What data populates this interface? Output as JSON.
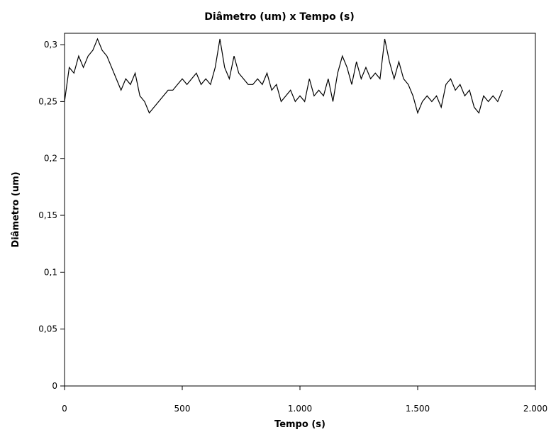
{
  "chart_data": {
    "type": "line",
    "title": "Diâmetro (um) x Tempo (s)",
    "x_label": "Tempo (s)",
    "y_label": "Diâmetro (um)",
    "x": [
      0,
      20,
      40,
      60,
      80,
      100,
      120,
      140,
      160,
      180,
      200,
      220,
      240,
      260,
      280,
      300,
      320,
      340,
      360,
      380,
      400,
      420,
      440,
      460,
      480,
      500,
      520,
      540,
      560,
      580,
      600,
      620,
      640,
      660,
      680,
      700,
      720,
      740,
      760,
      780,
      800,
      820,
      840,
      860,
      880,
      900,
      920,
      940,
      960,
      980,
      1000,
      1020,
      1040,
      1060,
      1080,
      1100,
      1120,
      1140,
      1160,
      1180,
      1200,
      1220,
      1240,
      1260,
      1280,
      1300,
      1320,
      1340,
      1360,
      1380,
      1400,
      1420,
      1440,
      1460,
      1480,
      1500,
      1520,
      1540,
      1560,
      1580,
      1600,
      1620,
      1640,
      1660,
      1680,
      1700,
      1720,
      1740,
      1760,
      1780,
      1800,
      1820,
      1840,
      1860
    ],
    "series": [
      {
        "color": "#000000",
        "values": [
          0.25,
          0.28,
          0.275,
          0.29,
          0.28,
          0.29,
          0.295,
          0.305,
          0.295,
          0.29,
          0.28,
          0.27,
          0.26,
          0.27,
          0.265,
          0.275,
          0.255,
          0.25,
          0.24,
          0.245,
          0.25,
          0.255,
          0.26,
          0.26,
          0.265,
          0.27,
          0.265,
          0.27,
          0.275,
          0.265,
          0.27,
          0.265,
          0.28,
          0.305,
          0.28,
          0.27,
          0.29,
          0.275,
          0.27,
          0.265,
          0.265,
          0.27,
          0.265,
          0.275,
          0.26,
          0.265,
          0.25,
          0.255,
          0.26,
          0.25,
          0.255,
          0.25,
          0.27,
          0.255,
          0.26,
          0.255,
          0.27,
          0.25,
          0.275,
          0.29,
          0.28,
          0.265,
          0.285,
          0.27,
          0.28,
          0.27,
          0.275,
          0.27,
          0.305,
          0.285,
          0.27,
          0.285,
          0.27,
          0.265,
          0.255,
          0.24,
          0.25,
          0.255,
          0.25,
          0.255,
          0.245,
          0.265,
          0.27,
          0.26,
          0.265,
          0.255,
          0.26,
          0.245,
          0.24,
          0.255,
          0.25,
          0.255,
          0.25,
          0.26
        ]
      }
    ],
    "xlim": [
      0,
      2000
    ],
    "xticks": [
      0,
      500,
      {
        "value": 1000,
        "label": "1.000"
      },
      {
        "value": 1500,
        "label": "1.500"
      },
      {
        "value": 2000,
        "label": "2.000"
      }
    ],
    "ylim": [
      0,
      0.31
    ],
    "yticks": [
      0,
      {
        "value": 0.05,
        "label": "0,05"
      },
      {
        "value": 0.1,
        "label": "0,1"
      },
      {
        "value": 0.15,
        "label": "0,15"
      },
      {
        "value": 0.2,
        "label": "0,2"
      },
      {
        "value": 0.25,
        "label": "0,25"
      },
      {
        "value": 0.3,
        "label": "0,3"
      }
    ],
    "grid": false
  }
}
